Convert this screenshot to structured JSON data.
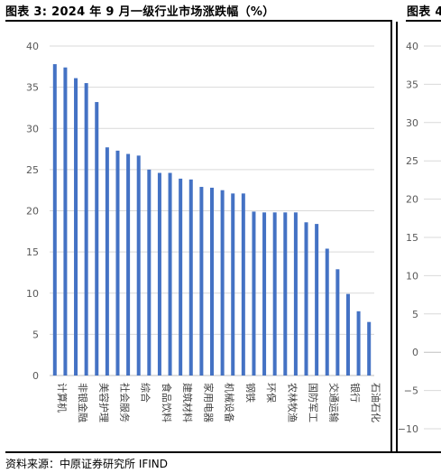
{
  "titles": {
    "left": "图表 3: 2024 年 9 月一级行业市场涨跌幅（%）",
    "right": "图表 4"
  },
  "source": "资料来源：中原证券研究所 IFIND",
  "colors": {
    "bar": "#4472C4",
    "grid": "#d9d9d9",
    "axis_text": "#595959"
  },
  "chart_data": [
    {
      "type": "bar",
      "title": "",
      "xlabel": "",
      "ylabel": "",
      "ylim": [
        0,
        40
      ],
      "yticks": [
        0,
        5,
        10,
        15,
        20,
        25,
        30,
        35,
        40
      ],
      "grid": true,
      "categories": [
        "计算机",
        "",
        "非银金融",
        "",
        "美容护理",
        "",
        "社会服务",
        "",
        "综合",
        "",
        "食品饮料",
        "",
        "建筑材料",
        "",
        "家用电器",
        "",
        "机械设备",
        "",
        "钢铁",
        "",
        "环保",
        "",
        "农林牧渔",
        "",
        "国防军工",
        "",
        "交通运输",
        "",
        "银行",
        "",
        "石油石化"
      ],
      "values": [
        37.8,
        37.4,
        36.1,
        35.5,
        33.2,
        27.7,
        27.3,
        26.9,
        26.7,
        25.0,
        24.6,
        24.6,
        23.9,
        23.8,
        22.9,
        22.8,
        22.5,
        22.1,
        22.1,
        19.9,
        19.8,
        19.8,
        19.8,
        19.8,
        18.6,
        18.4,
        15.4,
        12.9,
        9.9,
        7.8,
        6.5
      ]
    },
    {
      "type": "bar",
      "title": "",
      "ylim": [
        -10,
        40
      ],
      "yticks": [
        -10,
        -5,
        0,
        5,
        10,
        15,
        20,
        25,
        30,
        35,
        40
      ],
      "grid": true,
      "categories": [],
      "values": []
    }
  ]
}
